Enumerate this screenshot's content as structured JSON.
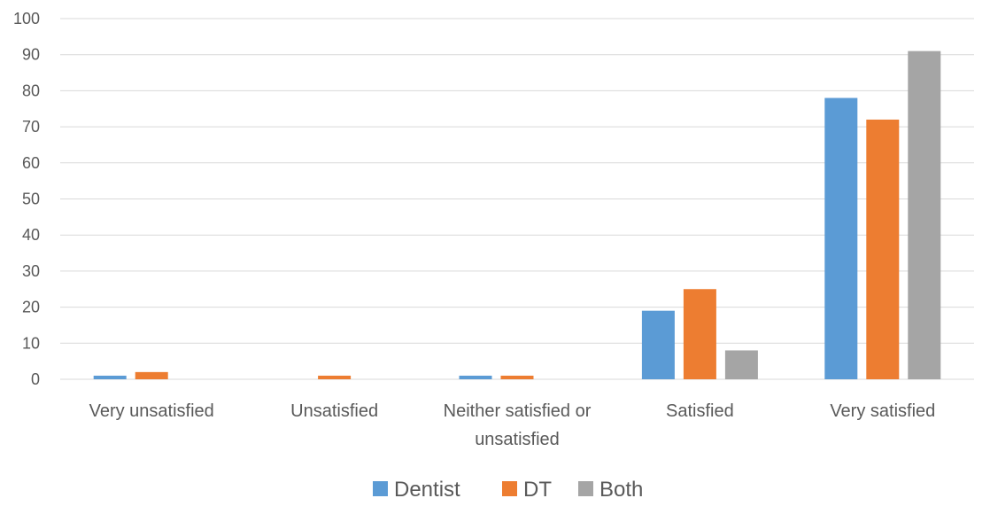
{
  "chart_data": {
    "type": "bar",
    "title": "",
    "xlabel": "",
    "ylabel": "",
    "ylim": [
      0,
      100
    ],
    "yticks": [
      0,
      10,
      20,
      30,
      40,
      50,
      60,
      70,
      80,
      90,
      100
    ],
    "grid": true,
    "legend_position": "bottom",
    "categories": [
      "Very unsatisfied",
      "Unsatisfied",
      "Neither satisfied or unsatisfied",
      "Satisfied",
      "Very satisfied"
    ],
    "category_label_lines": [
      [
        "Very unsatisfied"
      ],
      [
        "Unsatisfied"
      ],
      [
        "Neither satisfied or",
        "unsatisfied"
      ],
      [
        "Satisfied"
      ],
      [
        "Very satisfied"
      ]
    ],
    "series": [
      {
        "name": "Dentist",
        "color": "#5B9BD5",
        "values": [
          1,
          0,
          1,
          19,
          78
        ]
      },
      {
        "name": "DT",
        "color": "#ED7D31",
        "values": [
          2,
          1,
          1,
          25,
          72
        ]
      },
      {
        "name": "Both",
        "color": "#A5A5A5",
        "values": [
          0,
          0,
          0,
          8,
          91
        ]
      }
    ]
  }
}
